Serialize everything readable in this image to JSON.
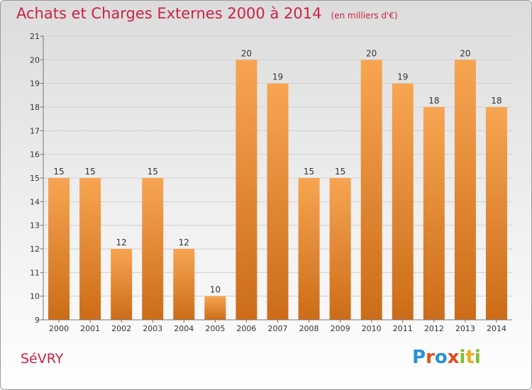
{
  "header": {
    "title": "Achats et Charges Externes 2000 à 2014",
    "unit": "(en milliers d'€)"
  },
  "footer": {
    "city": "SéVRY",
    "brand": "Proxiti"
  },
  "colors": {
    "bar_light": "#f7a552",
    "bar_dark": "#cc6c18",
    "title": "#cc2244",
    "axis": "#555555"
  },
  "chart_data": {
    "type": "bar",
    "title": "Achats et Charges Externes 2000 à 2014",
    "subtitle": "(en milliers d'€)",
    "categories": [
      "2000",
      "2001",
      "2002",
      "2003",
      "2004",
      "2005",
      "2006",
      "2007",
      "2008",
      "2009",
      "2010",
      "2011",
      "2012",
      "2013",
      "2014"
    ],
    "values": [
      15,
      15,
      12,
      15,
      12,
      10,
      20,
      19,
      15,
      15,
      20,
      19,
      18,
      20,
      18
    ],
    "ylim": [
      9,
      21
    ],
    "yticks": [
      9,
      10,
      11,
      12,
      13,
      14,
      15,
      16,
      17,
      18,
      19,
      20,
      21
    ],
    "grid": true,
    "data_labels": true
  }
}
